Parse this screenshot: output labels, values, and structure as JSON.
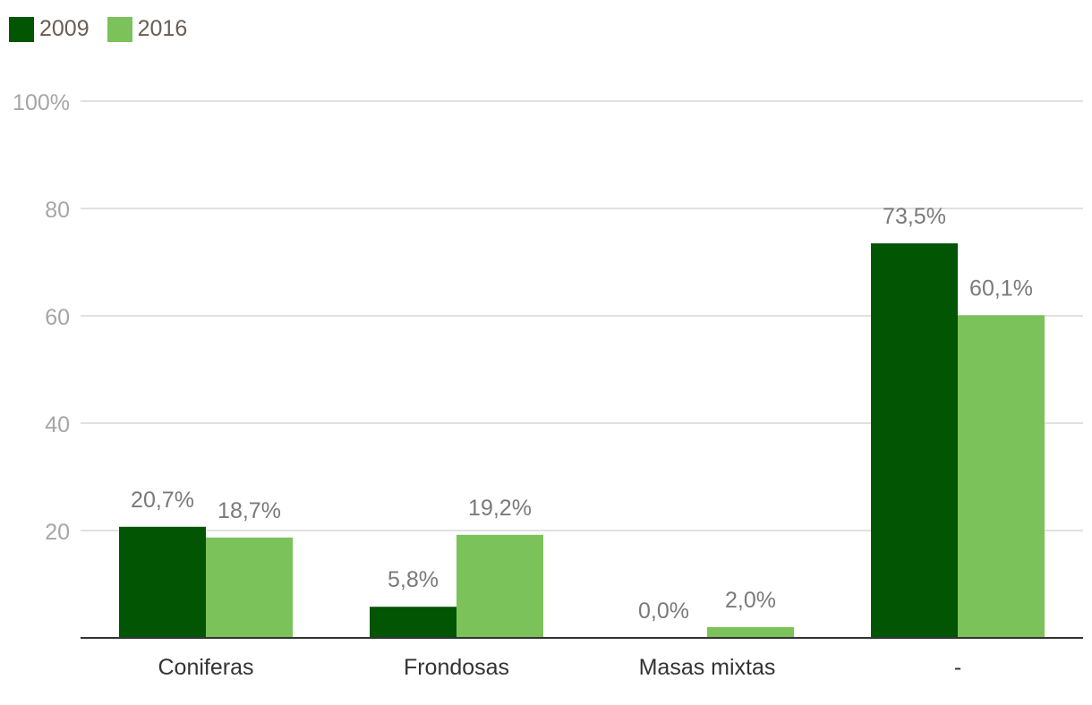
{
  "chart_data": {
    "type": "bar",
    "title": "",
    "xlabel": "",
    "ylabel": "",
    "categories": [
      "Coniferas",
      "Frondosas",
      "Masas mixtas",
      "-"
    ],
    "series": [
      {
        "name": "2009",
        "color": "#025502",
        "values": [
          20.7,
          5.8,
          0.0,
          73.5
        ],
        "labels": [
          "20,7%",
          "5,8%",
          "0,0%",
          "73,5%"
        ]
      },
      {
        "name": "2016",
        "color": "#7bc25a",
        "values": [
          18.7,
          19.2,
          2.0,
          60.1
        ],
        "labels": [
          "18,7%",
          "19,2%",
          "2,0%",
          "60,1%"
        ]
      }
    ],
    "ylim": [
      0,
      100
    ],
    "yticks": [
      20,
      40,
      60,
      80,
      100
    ],
    "ytick_labels": [
      "20",
      "40",
      "60",
      "80",
      "100%"
    ],
    "grid": true,
    "legend_position": "top-left",
    "colors": {
      "grid": "#e1e1e1",
      "axis": "#333333",
      "tick_label": "#a6a6a6",
      "data_label": "#7a7a7a",
      "category_label": "#333333",
      "legend_text": "#6b5d52"
    }
  }
}
